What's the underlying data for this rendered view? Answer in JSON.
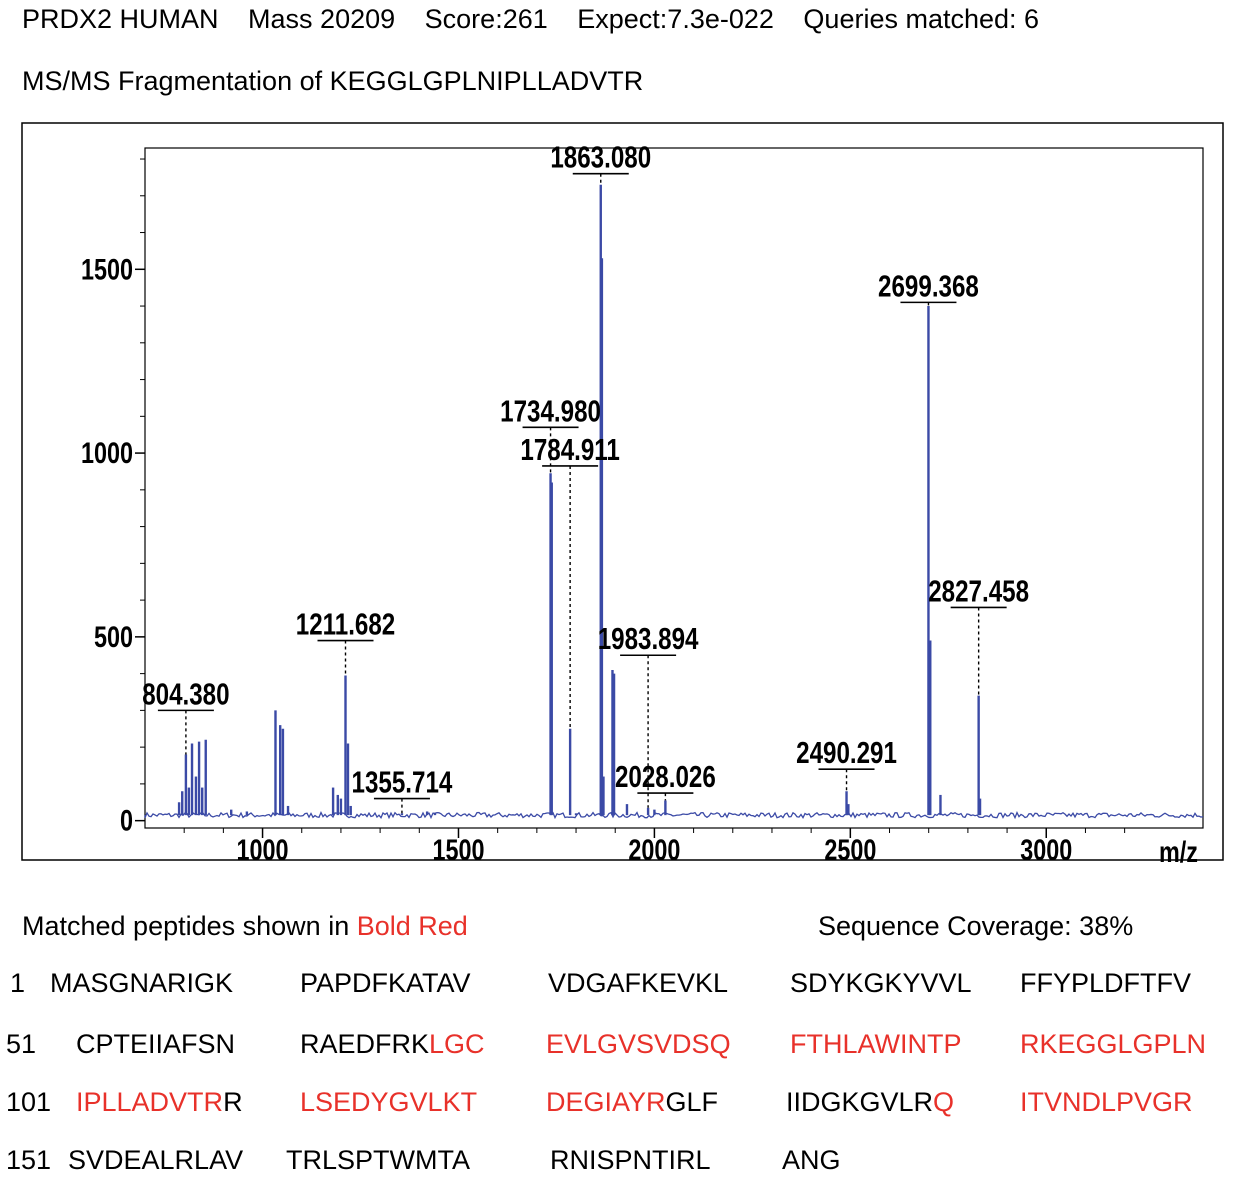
{
  "header": {
    "protein": "PRDX2 HUMAN",
    "mass": "Mass 20209",
    "score": "Score:261",
    "expect": "Expect:7.3e-022",
    "queries": "Queries matched: 6",
    "subtitle": "MS/MS Fragmentation of KEGGLGPLNIPLLADVTR"
  },
  "chart_data": {
    "type": "bar",
    "title": "",
    "xlabel": "m/z",
    "ylabel": "",
    "xlim": [
      700,
      3400
    ],
    "ylim": [
      -20,
      1830
    ],
    "xticks": [
      1000,
      1500,
      2000,
      2500,
      3000
    ],
    "yticks": [
      0,
      500,
      1000,
      1500
    ],
    "baseline": 15,
    "series": [
      {
        "values": [
          {
            "x": 787,
            "y": 50
          },
          {
            "x": 795,
            "y": 80
          },
          {
            "x": 804.38,
            "y": 180
          },
          {
            "x": 812,
            "y": 90
          },
          {
            "x": 820,
            "y": 210
          },
          {
            "x": 830,
            "y": 120
          },
          {
            "x": 838,
            "y": 215
          },
          {
            "x": 846,
            "y": 90
          },
          {
            "x": 855,
            "y": 220
          },
          {
            "x": 920,
            "y": 30
          },
          {
            "x": 960,
            "y": 25
          },
          {
            "x": 1033,
            "y": 300
          },
          {
            "x": 1045,
            "y": 260
          },
          {
            "x": 1052,
            "y": 250
          },
          {
            "x": 1065,
            "y": 40
          },
          {
            "x": 1180,
            "y": 90
          },
          {
            "x": 1192,
            "y": 70
          },
          {
            "x": 1200,
            "y": 60
          },
          {
            "x": 1211.682,
            "y": 395
          },
          {
            "x": 1218,
            "y": 210
          },
          {
            "x": 1225,
            "y": 40
          },
          {
            "x": 1355.714,
            "y": 20
          },
          {
            "x": 1420,
            "y": 25
          },
          {
            "x": 1440,
            "y": 20
          },
          {
            "x": 1734.98,
            "y": 945
          },
          {
            "x": 1738,
            "y": 920
          },
          {
            "x": 1784.911,
            "y": 250
          },
          {
            "x": 1800,
            "y": 20
          },
          {
            "x": 1863.08,
            "y": 1730
          },
          {
            "x": 1866,
            "y": 1530
          },
          {
            "x": 1870,
            "y": 120
          },
          {
            "x": 1893,
            "y": 410
          },
          {
            "x": 1897,
            "y": 400
          },
          {
            "x": 1930,
            "y": 45
          },
          {
            "x": 1983.894,
            "y": 35
          },
          {
            "x": 2000,
            "y": 30
          },
          {
            "x": 2028.026,
            "y": 55
          },
          {
            "x": 2490.291,
            "y": 80
          },
          {
            "x": 2495,
            "y": 45
          },
          {
            "x": 2699.368,
            "y": 1400
          },
          {
            "x": 2704,
            "y": 490
          },
          {
            "x": 2730,
            "y": 70
          },
          {
            "x": 2827.458,
            "y": 340
          },
          {
            "x": 2831,
            "y": 60
          }
        ]
      }
    ],
    "annotations": [
      {
        "label": "804.380",
        "x": 804.38,
        "y": 300
      },
      {
        "label": "1211.682",
        "x": 1211.682,
        "y": 490
      },
      {
        "label": "1355.714",
        "x": 1355.714,
        "y": 60
      },
      {
        "label": "1734.980",
        "x": 1734.98,
        "y": 1070
      },
      {
        "label": "1784.911",
        "x": 1784.911,
        "y": 965
      },
      {
        "label": "1863.080",
        "x": 1863.08,
        "y": 1760
      },
      {
        "label": "1983.894",
        "x": 1983.894,
        "y": 450
      },
      {
        "label": "2028.026",
        "x": 2028.026,
        "y": 75
      },
      {
        "label": "2490.291",
        "x": 2490.291,
        "y": 140
      },
      {
        "label": "2699.368",
        "x": 2699.368,
        "y": 1410
      },
      {
        "label": "2827.458",
        "x": 2827.458,
        "y": 580
      }
    ],
    "colors": {
      "peaks": "#3b4aa6",
      "frame": "#000000"
    }
  },
  "sequence": {
    "legend_prefix": "Matched peptides shown in ",
    "legend_highlight": "Bold Red",
    "coverage": "Sequence Coverage: 38%",
    "rows": [
      {
        "start": "1",
        "blocks": [
          [
            {
              "t": "MASGNARIGK",
              "m": false
            }
          ],
          [
            {
              "t": "PAPDFKATAV",
              "m": false
            }
          ],
          [
            {
              "t": "VDGAFKEVKL",
              "m": false
            }
          ],
          [
            {
              "t": "SDYKGKYVVL",
              "m": false
            }
          ],
          [
            {
              "t": "FFYPLDFTFV",
              "m": false
            }
          ]
        ]
      },
      {
        "start": "51",
        "blocks": [
          [
            {
              "t": "CPTEIIAFSN",
              "m": false
            }
          ],
          [
            {
              "t": "RAEDFRK",
              "m": false
            },
            {
              "t": "LGC",
              "m": true
            }
          ],
          [
            {
              "t": "EVLGVSVDSQ",
              "m": true
            }
          ],
          [
            {
              "t": "FTHLAWINTP",
              "m": true
            }
          ],
          [
            {
              "t": "RKEGGLGPLN",
              "m": true
            }
          ]
        ]
      },
      {
        "start": "101",
        "blocks": [
          [
            {
              "t": "IPLLADVTR",
              "m": true
            },
            {
              "t": "R",
              "m": false
            }
          ],
          [
            {
              "t": "LSEDYGVLKT",
              "m": true
            }
          ],
          [
            {
              "t": "DEGIAYR",
              "m": true
            },
            {
              "t": "GLF",
              "m": false
            }
          ],
          [
            {
              "t": "IIDGKGVLR",
              "m": false
            },
            {
              "t": "Q",
              "m": true
            }
          ],
          [
            {
              "t": "ITVNDLPVGR",
              "m": true
            }
          ]
        ]
      },
      {
        "start": "151",
        "blocks": [
          [
            {
              "t": "SVDEALRLAV",
              "m": false
            }
          ],
          [
            {
              "t": "TRLSPTWMTA",
              "m": false
            }
          ],
          [
            {
              "t": "RNISPNTIRL",
              "m": false
            }
          ],
          [
            {
              "t": "ANG",
              "m": false
            }
          ]
        ]
      }
    ]
  }
}
